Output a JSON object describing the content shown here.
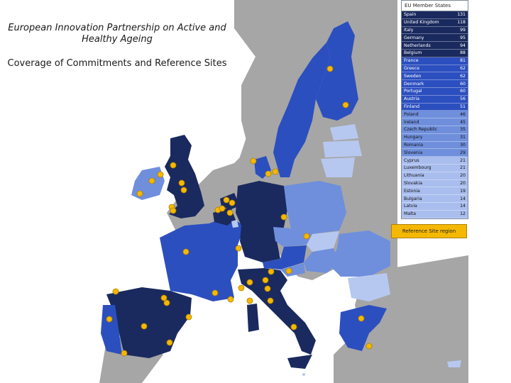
{
  "title": "European Innovation Partnership on Active and Healthy Ageing",
  "subtitle": "Coverage of Commitments and Reference Sites",
  "legend": {
    "header": "EU Member States",
    "rows": [
      {
        "country": "Spain",
        "value": "131",
        "color": "#1a2a5e",
        "text": "#ffffff"
      },
      {
        "country": "United Kingdom",
        "value": "118",
        "color": "#1a2a5e",
        "text": "#ffffff"
      },
      {
        "country": "Italy",
        "value": "99",
        "color": "#1a2a5e",
        "text": "#ffffff"
      },
      {
        "country": "Germany",
        "value": "95",
        "color": "#1a2a5e",
        "text": "#ffffff"
      },
      {
        "country": "Netherlands",
        "value": "94",
        "color": "#1a2a5e",
        "text": "#ffffff"
      },
      {
        "country": "Belgium",
        "value": "88",
        "color": "#1a2a5e",
        "text": "#ffffff"
      },
      {
        "country": "France",
        "value": "81",
        "color": "#2c4fbf",
        "text": "#ffffff"
      },
      {
        "country": "Greece",
        "value": "62",
        "color": "#2c4fbf",
        "text": "#ffffff"
      },
      {
        "country": "Sweden",
        "value": "62",
        "color": "#2c4fbf",
        "text": "#ffffff"
      },
      {
        "country": "Denmark",
        "value": "60",
        "color": "#2c4fbf",
        "text": "#ffffff"
      },
      {
        "country": "Portugal",
        "value": "60",
        "color": "#2c4fbf",
        "text": "#ffffff"
      },
      {
        "country": "Austria",
        "value": "56",
        "color": "#2c4fbf",
        "text": "#ffffff"
      },
      {
        "country": "Finland",
        "value": "51",
        "color": "#2c4fbf",
        "text": "#ffffff"
      },
      {
        "country": "Poland",
        "value": "46",
        "color": "#6f8fdc",
        "text": "#111111"
      },
      {
        "country": "Ireland",
        "value": "45",
        "color": "#6f8fdc",
        "text": "#111111"
      },
      {
        "country": "Czech Republic",
        "value": "35",
        "color": "#6f8fdc",
        "text": "#111111"
      },
      {
        "country": "Hungary",
        "value": "31",
        "color": "#6f8fdc",
        "text": "#111111"
      },
      {
        "country": "Romania",
        "value": "30",
        "color": "#6f8fdc",
        "text": "#111111"
      },
      {
        "country": "Slovenia",
        "value": "29",
        "color": "#6f8fdc",
        "text": "#111111"
      },
      {
        "country": "Cyprus",
        "value": "21",
        "color": "#a9bdee",
        "text": "#111111"
      },
      {
        "country": "Luxembourg",
        "value": "21",
        "color": "#a9bdee",
        "text": "#111111"
      },
      {
        "country": "Lithuania",
        "value": "20",
        "color": "#a9bdee",
        "text": "#111111"
      },
      {
        "country": "Slovakia",
        "value": "20",
        "color": "#a9bdee",
        "text": "#111111"
      },
      {
        "country": "Estonia",
        "value": "19",
        "color": "#a9bdee",
        "text": "#111111"
      },
      {
        "country": "Bulgaria",
        "value": "14",
        "color": "#a9bdee",
        "text": "#111111"
      },
      {
        "country": "Latvia",
        "value": "14",
        "color": "#a9bdee",
        "text": "#111111"
      },
      {
        "country": "Malta",
        "value": "12",
        "color": "#a9bdee",
        "text": "#111111"
      }
    ]
  },
  "reference_site_label": "Reference Site region",
  "colors": {
    "sea": "#ffffff",
    "non_eu": "#a6a6a6",
    "tier1": "#1a2a5e",
    "tier2": "#2c4fbf",
    "tier3": "#6f8fdc",
    "tier4": "#b7c8f0",
    "reference_site": "#f5b800"
  }
}
